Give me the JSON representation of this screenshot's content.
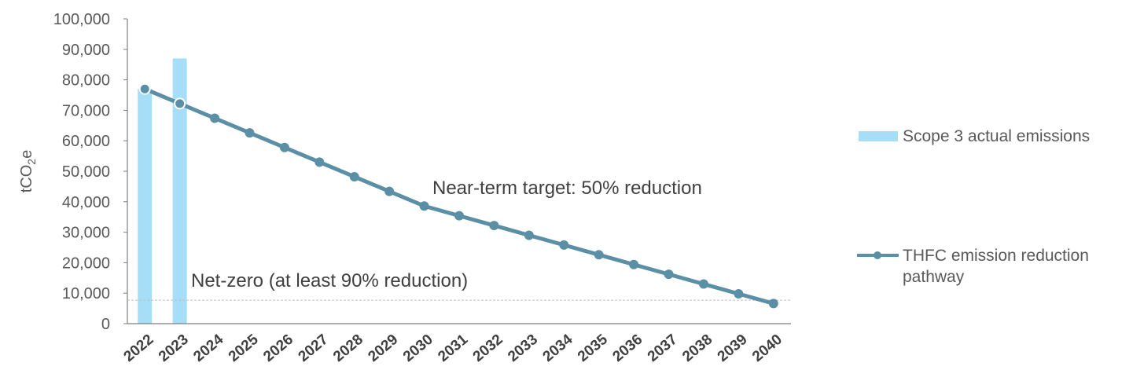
{
  "chart_data": {
    "type": "bar+line",
    "categories": [
      "2022",
      "2023",
      "2024",
      "2025",
      "2026",
      "2027",
      "2028",
      "2029",
      "2030",
      "2031",
      "2032",
      "2033",
      "2034",
      "2035",
      "2036",
      "2037",
      "2038",
      "2039",
      "2040"
    ],
    "series": [
      {
        "name": "Scope 3  actual emissions",
        "type": "bar",
        "color": "#A6DDF7",
        "values": [
          77000,
          87000,
          null,
          null,
          null,
          null,
          null,
          null,
          null,
          null,
          null,
          null,
          null,
          null,
          null,
          null,
          null,
          null,
          null
        ]
      },
      {
        "name": "THFC emission reduction pathway",
        "type": "line",
        "color": "#5B8FA6",
        "values": [
          77000,
          72200,
          67400,
          62600,
          57800,
          53000,
          48200,
          43400,
          38600,
          35400,
          32200,
          29000,
          25800,
          22600,
          19400,
          16200,
          13000,
          9800,
          6600
        ]
      }
    ],
    "reference_line": {
      "value": 7700,
      "label": "Net-zero (at least 90% reduction)"
    },
    "annotation": "Near-term target: 50% reduction",
    "ylabel": "tCO",
    "ylabel_sub": "2",
    "ylabel_suffix": "e",
    "ylim": [
      0,
      100000
    ],
    "yticks": [
      0,
      10000,
      20000,
      30000,
      40000,
      50000,
      60000,
      70000,
      80000,
      90000,
      100000
    ],
    "ytick_labels": [
      "0",
      "10,000",
      "20,000",
      "30,000",
      "40,000",
      "50,000",
      "60,000",
      "70,000",
      "80,000",
      "90,000",
      "100,000"
    ],
    "legend_position": "right",
    "grid": false
  }
}
